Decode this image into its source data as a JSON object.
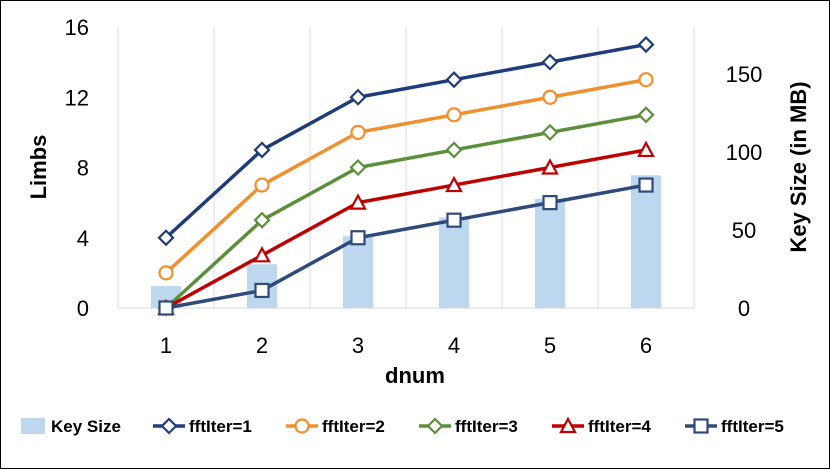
{
  "chart_data": {
    "type": "bar+line",
    "xlabel": "dnum",
    "ylabel_left": "Limbs",
    "ylabel_right": "Key Size (in MB)",
    "x": [
      1,
      2,
      3,
      4,
      5,
      6
    ],
    "ylim_left": [
      0,
      16
    ],
    "yticks_left": [
      0,
      4,
      8,
      12,
      16
    ],
    "ylim_right": [
      0,
      180
    ],
    "yticks_right": [
      0,
      50,
      100,
      150
    ],
    "grid": "vertical",
    "legend_position": "bottom",
    "bars": {
      "name": "Key Size",
      "axis": "right",
      "color": "#bdd7ee",
      "values": [
        14,
        28,
        46,
        58,
        70,
        85
      ]
    },
    "series": [
      {
        "name": "fftIter=1",
        "color": "#1f3c7a",
        "marker": "diamond",
        "values": [
          4,
          9,
          12,
          13,
          14,
          15
        ]
      },
      {
        "name": "fftIter=2",
        "color": "#f28e2b",
        "marker": "circle",
        "values": [
          2,
          7,
          10,
          11,
          12,
          13
        ]
      },
      {
        "name": "fftIter=3",
        "color": "#5b8f3a",
        "marker": "diamond",
        "values": [
          0,
          5,
          8,
          9,
          10,
          11
        ]
      },
      {
        "name": "fftIter=4",
        "color": "#c00000",
        "marker": "triangle",
        "values": [
          0,
          3,
          6,
          7,
          8,
          9
        ]
      },
      {
        "name": "fftIter=5",
        "color": "#2e4a7a",
        "marker": "square",
        "values": [
          0,
          1,
          4,
          5,
          6,
          7
        ]
      }
    ]
  }
}
